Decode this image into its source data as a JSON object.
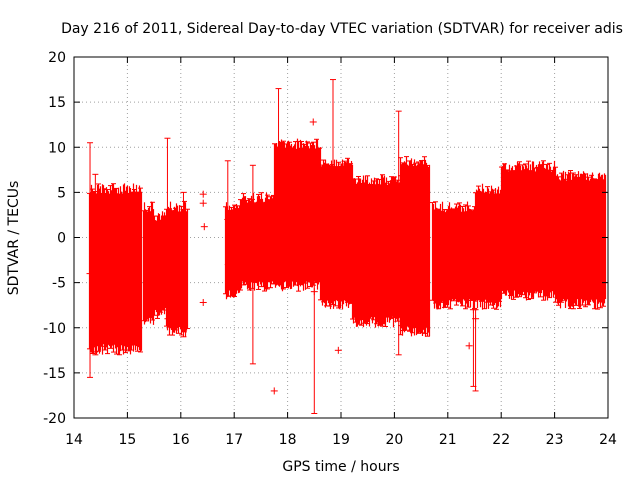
{
  "chart_data": {
    "type": "scatter",
    "title": "Day 216 of 2011, Sidereal Day-to-day VTEC variation (SDTVAR) for receiver adis",
    "xlabel": "GPS time / hours",
    "ylabel": "SDTVAR / TECUs",
    "xlim": [
      14,
      24
    ],
    "ylim": [
      -20,
      20
    ],
    "x_ticks": [
      "14",
      "15",
      "16",
      "17",
      "18",
      "19",
      "20",
      "21",
      "22",
      "23",
      "24"
    ],
    "y_ticks": [
      "20",
      "15",
      "10",
      "5",
      "0",
      "-5",
      "-10",
      "-15",
      "-20"
    ],
    "grid": true,
    "legend": "none",
    "series": [
      {
        "name": "SDTVAR",
        "color": "#ff0000",
        "marker": "plus-with-errorbar",
        "envelope": [
          {
            "x_start": 14.28,
            "x_end": 15.25,
            "upper": 6,
            "lower": -13
          },
          {
            "x_start": 15.3,
            "x_end": 15.48,
            "upper": 4,
            "lower": -10
          },
          {
            "x_start": 15.5,
            "x_end": 15.7,
            "upper": 3,
            "lower": -9
          },
          {
            "x_start": 15.72,
            "x_end": 16.12,
            "upper": 4,
            "lower": -11
          },
          {
            "x_start": 16.82,
            "x_end": 17.1,
            "upper": 4,
            "lower": -7
          },
          {
            "x_start": 17.1,
            "x_end": 17.75,
            "upper": 5,
            "lower": -6
          },
          {
            "x_start": 17.75,
            "x_end": 18.6,
            "upper": 11,
            "lower": -6
          },
          {
            "x_start": 18.6,
            "x_end": 19.2,
            "upper": 9,
            "lower": -8
          },
          {
            "x_start": 19.2,
            "x_end": 20.1,
            "upper": 7,
            "lower": -10
          },
          {
            "x_start": 20.1,
            "x_end": 20.65,
            "upper": 9,
            "lower": -11
          },
          {
            "x_start": 20.7,
            "x_end": 21.5,
            "upper": 4,
            "lower": -8
          },
          {
            "x_start": 21.5,
            "x_end": 22.0,
            "upper": 6,
            "lower": -8
          },
          {
            "x_start": 22.0,
            "x_end": 23.0,
            "upper": 8.5,
            "lower": -7
          },
          {
            "x_start": 23.0,
            "x_end": 23.95,
            "upper": 7.5,
            "lower": -8
          }
        ],
        "points": [
          {
            "x": 14.3,
            "y": -4,
            "ymin": -15.5,
            "ymax": 10.5
          },
          {
            "x": 14.4,
            "y": -3,
            "ymin": -13,
            "ymax": 7
          },
          {
            "x": 15.75,
            "y": -2,
            "ymin": -9,
            "ymax": 11
          },
          {
            "x": 16.05,
            "y": -3,
            "ymin": -11,
            "ymax": 5
          },
          {
            "x": 16.42,
            "y": 4.8,
            "ymin": 4.8,
            "ymax": 4.8
          },
          {
            "x": 16.42,
            "y": 3.8,
            "ymin": 3.8,
            "ymax": 3.8
          },
          {
            "x": 16.44,
            "y": 1.2,
            "ymin": 1.2,
            "ymax": 1.2
          },
          {
            "x": 16.42,
            "y": -7.2,
            "ymin": -7.2,
            "ymax": -7.2
          },
          {
            "x": 16.88,
            "y": 2,
            "ymin": -3,
            "ymax": 8.5
          },
          {
            "x": 17.35,
            "y": 3,
            "ymin": -14,
            "ymax": 8
          },
          {
            "x": 17.75,
            "y": -17,
            "ymin": -17,
            "ymax": -17
          },
          {
            "x": 17.83,
            "y": 8,
            "ymin": 3,
            "ymax": 16.5
          },
          {
            "x": 18.48,
            "y": 12.8,
            "ymin": 12.8,
            "ymax": 12.8
          },
          {
            "x": 18.5,
            "y": -6,
            "ymin": -19.5,
            "ymax": 5
          },
          {
            "x": 18.85,
            "y": 5,
            "ymin": 5,
            "ymax": 17.5
          },
          {
            "x": 18.95,
            "y": -12.5,
            "ymin": -12.5,
            "ymax": -12.5
          },
          {
            "x": 20.08,
            "y": 4,
            "ymin": -13,
            "ymax": 14
          },
          {
            "x": 21.4,
            "y": -12,
            "ymin": -12,
            "ymax": -12
          },
          {
            "x": 21.48,
            "y": -8,
            "ymin": -16.5,
            "ymax": -6
          },
          {
            "x": 21.52,
            "y": -9,
            "ymin": -17,
            "ymax": -8
          }
        ]
      }
    ]
  }
}
